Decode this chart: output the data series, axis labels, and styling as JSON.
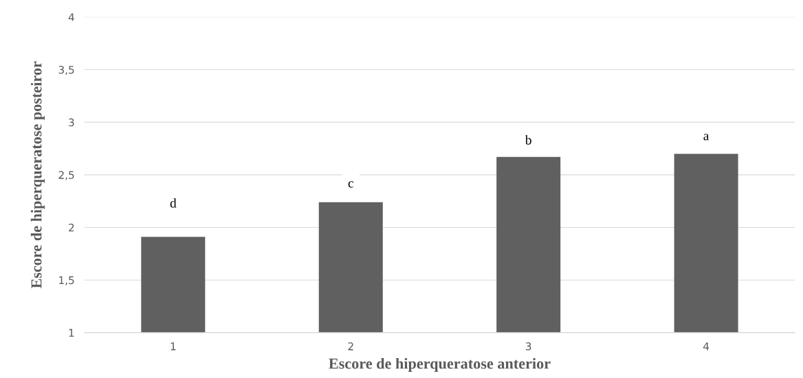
{
  "chart_data": {
    "type": "bar",
    "xlabel": "Escore de hiperqueratose anterior",
    "ylabel": "Escore de hiperqueratose posteiror",
    "categories": [
      "1",
      "2",
      "3",
      "4"
    ],
    "values": [
      1.91,
      2.24,
      2.67,
      2.7
    ],
    "color": "#606060",
    "ylim": [
      1,
      4
    ],
    "yticks": [
      1,
      {
        "value": 1.5,
        "label": "1,5"
      },
      2,
      {
        "value": 2.5,
        "label": "2,5"
      },
      3,
      {
        "value": 3.5,
        "label": "3,5"
      },
      4
    ],
    "grid": "y",
    "annotations": [
      {
        "text": "d",
        "x": "1",
        "y": 2.22
      },
      {
        "text": "c",
        "x": "2",
        "y": 2.41
      },
      {
        "text": "b",
        "x": "3",
        "y": 2.82
      },
      {
        "text": "a",
        "x": "4",
        "y": 2.86
      }
    ]
  }
}
